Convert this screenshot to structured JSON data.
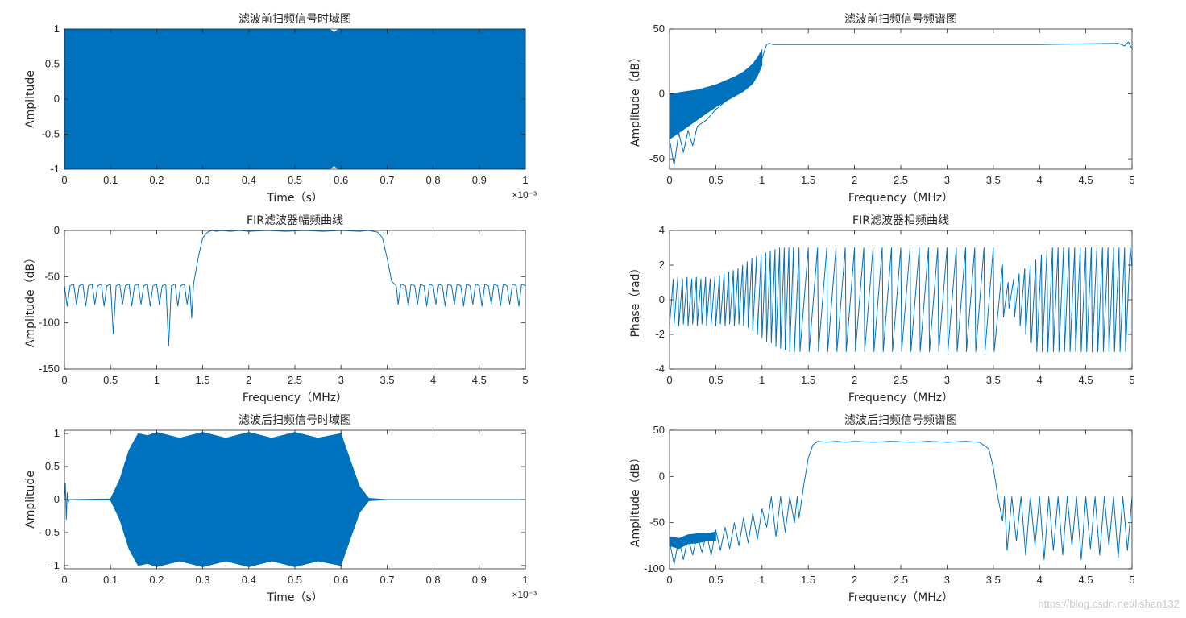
{
  "chart_data": [
    {
      "id": "p1",
      "type": "line",
      "title": "滤波前扫频信号时域图",
      "xlabel": "Time（s）",
      "ylabel": "Amplitude",
      "x_exponent": "×10⁻³",
      "xlim": [
        0,
        1
      ],
      "ylim": [
        -1,
        1
      ],
      "xticks": [
        "0",
        "0.1",
        "0.2",
        "0.3",
        "0.4",
        "0.5",
        "0.6",
        "0.7",
        "0.8",
        "0.9",
        "1"
      ],
      "yticks": [
        "-1",
        "-0.5",
        "0",
        "0.5",
        "1"
      ],
      "grid": false,
      "series": [
        {
          "style": "filled-envelope",
          "x": [
            0,
            0.25,
            0.5,
            0.575,
            0.585,
            0.595,
            0.75,
            1.0
          ],
          "upper": [
            1,
            1,
            1,
            1,
            0.95,
            1,
            1,
            1
          ],
          "lower": [
            -1,
            -1,
            -1,
            -1,
            -0.95,
            -1,
            -1,
            -1
          ]
        }
      ]
    },
    {
      "id": "p2",
      "type": "line",
      "title": "滤波前扫频信号频谱图",
      "xlabel": "Frequency（MHz）",
      "ylabel": "Amplitude（dB）",
      "xlim": [
        0,
        5
      ],
      "ylim": [
        -58,
        50
      ],
      "xticks": [
        "0",
        "0.5",
        "1",
        "1.5",
        "2",
        "2.5",
        "3",
        "3.5",
        "4",
        "4.5",
        "5"
      ],
      "yticks": [
        "-50",
        "0",
        "50"
      ],
      "grid": false,
      "series": [
        {
          "style": "filled-envelope",
          "x": [
            0,
            0.1,
            0.2,
            0.3,
            0.4,
            0.5,
            0.6,
            0.7,
            0.8,
            0.9,
            0.95,
            1.0
          ],
          "upper": [
            0,
            1,
            2,
            3,
            5,
            7,
            10,
            13,
            17,
            23,
            28,
            34
          ],
          "lower": [
            -35,
            -30,
            -25,
            -20,
            -15,
            -10,
            -6,
            -2,
            2,
            8,
            14,
            22
          ]
        },
        {
          "style": "line",
          "x": [
            0,
            0.05,
            0.1,
            0.15,
            0.2,
            0.25,
            0.3,
            0.4,
            0.5,
            0.6,
            0.7,
            0.8,
            0.9,
            0.95,
            1.0,
            1.03,
            1.05,
            1.08,
            1.12,
            1.2,
            2.0,
            3.0,
            4.0,
            4.85,
            4.92,
            4.96,
            5.0
          ],
          "y": [
            -35,
            -55,
            -30,
            -45,
            -28,
            -40,
            -25,
            -20,
            -12,
            -6,
            0,
            5,
            13,
            19,
            27,
            34,
            38,
            39,
            38,
            38,
            38,
            38,
            38,
            39,
            37,
            40,
            35
          ]
        }
      ]
    },
    {
      "id": "p3",
      "type": "line",
      "title": "FIR滤波器幅频曲线",
      "xlabel": "Frequency（MHz）",
      "ylabel": "Amplitude（dB）",
      "xlim": [
        0,
        5
      ],
      "ylim": [
        -150,
        0
      ],
      "xticks": [
        "0",
        "0.5",
        "1",
        "1.5",
        "2",
        "2.5",
        "3",
        "3.5",
        "4",
        "4.5",
        "5"
      ],
      "yticks": [
        "-150",
        "-100",
        "-50",
        "0"
      ],
      "grid": false,
      "series": [
        {
          "style": "line",
          "x": [
            0,
            0.03,
            0.06,
            0.1,
            0.13,
            0.16,
            0.2,
            0.23,
            0.26,
            0.3,
            0.33,
            0.36,
            0.4,
            0.43,
            0.46,
            0.5,
            0.53,
            0.56,
            0.6,
            0.63,
            0.66,
            0.7,
            0.73,
            0.76,
            0.8,
            0.83,
            0.86,
            0.9,
            0.93,
            0.96,
            1.0,
            1.03,
            1.06,
            1.1,
            1.13,
            1.16,
            1.2,
            1.23,
            1.26,
            1.3,
            1.33,
            1.36,
            1.38,
            1.4,
            1.45,
            1.5,
            1.55,
            1.6,
            1.65,
            1.7,
            1.8,
            1.9,
            2.0,
            2.2,
            2.4,
            2.6,
            2.8,
            3.0,
            3.2,
            3.3,
            3.4,
            3.45,
            3.5,
            3.55,
            3.6,
            3.62,
            3.65,
            3.7,
            3.73,
            3.76,
            3.8,
            3.83,
            3.86,
            3.9,
            3.93,
            3.96,
            4.0,
            4.03,
            4.06,
            4.1,
            4.13,
            4.16,
            4.2,
            4.23,
            4.26,
            4.3,
            4.33,
            4.36,
            4.4,
            4.43,
            4.46,
            4.5,
            4.53,
            4.56,
            4.6,
            4.63,
            4.66,
            4.7,
            4.73,
            4.76,
            4.8,
            4.83,
            4.86,
            4.9,
            4.93,
            4.96,
            5.0
          ],
          "y": [
            -60,
            -82,
            -60,
            -58,
            -80,
            -60,
            -58,
            -82,
            -60,
            -58,
            -80,
            -60,
            -58,
            -82,
            -60,
            -58,
            -112,
            -60,
            -58,
            -80,
            -60,
            -58,
            -82,
            -60,
            -58,
            -80,
            -60,
            -58,
            -82,
            -60,
            -58,
            -80,
            -60,
            -58,
            -125,
            -60,
            -58,
            -82,
            -60,
            -58,
            -80,
            -60,
            -95,
            -58,
            -30,
            -8,
            -2,
            0,
            -1,
            0,
            -1,
            0,
            -1,
            0,
            -1,
            0,
            -1,
            0,
            -1,
            0,
            -2,
            -8,
            -30,
            -55,
            -60,
            -80,
            -58,
            -60,
            -82,
            -58,
            -60,
            -80,
            -58,
            -60,
            -82,
            -58,
            -60,
            -80,
            -58,
            -60,
            -82,
            -58,
            -60,
            -80,
            -58,
            -60,
            -82,
            -58,
            -60,
            -80,
            -58,
            -60,
            -82,
            -58,
            -60,
            -80,
            -58,
            -60,
            -82,
            -58,
            -60,
            -80,
            -58,
            -60,
            -82,
            -58,
            -60
          ]
        }
      ]
    },
    {
      "id": "p4",
      "type": "line",
      "title": "FIR滤波器相频曲线",
      "xlabel": "Frequency（MHz）",
      "ylabel": "Phase（rad）",
      "xlim": [
        0,
        5
      ],
      "ylim": [
        -4,
        4
      ],
      "xticks": [
        "0",
        "0.5",
        "1",
        "1.5",
        "2",
        "2.5",
        "3",
        "3.5",
        "4",
        "4.5",
        "5"
      ],
      "yticks": [
        "-4",
        "-2",
        "0",
        "2",
        "4"
      ],
      "grid": false,
      "series": [
        {
          "style": "line",
          "x": [
            0,
            0.04,
            0.05,
            0.09,
            0.1,
            0.14,
            0.15,
            0.19,
            0.2,
            0.24,
            0.25,
            0.29,
            0.3,
            0.34,
            0.35,
            0.39,
            0.4,
            0.44,
            0.45,
            0.49,
            0.5,
            0.54,
            0.55,
            0.59,
            0.6,
            0.64,
            0.65,
            0.69,
            0.7,
            0.74,
            0.75,
            0.79,
            0.8,
            0.84,
            0.85,
            0.89,
            0.9,
            0.94,
            0.95,
            0.99,
            1.0,
            1.04,
            1.05,
            1.09,
            1.1,
            1.14,
            1.15,
            1.19,
            1.2,
            1.24,
            1.25,
            1.29,
            1.3,
            1.34,
            1.35,
            1.4,
            1.41,
            1.5,
            1.51,
            1.6,
            1.61,
            1.7,
            1.71,
            1.8,
            1.81,
            1.9,
            1.91,
            2.0,
            2.01,
            2.1,
            2.11,
            2.2,
            2.21,
            2.3,
            2.31,
            2.4,
            2.41,
            2.5,
            2.51,
            2.6,
            2.61,
            2.7,
            2.71,
            2.8,
            2.81,
            2.9,
            2.91,
            3.0,
            3.01,
            3.1,
            3.11,
            3.2,
            3.21,
            3.3,
            3.31,
            3.4,
            3.41,
            3.5,
            3.51,
            3.6,
            3.61,
            3.66,
            3.67,
            3.72,
            3.73,
            3.78,
            3.79,
            3.84,
            3.85,
            3.9,
            3.91,
            3.96,
            3.97,
            4.02,
            4.03,
            4.08,
            4.09,
            4.14,
            4.15,
            4.2,
            4.21,
            4.26,
            4.27,
            4.32,
            4.33,
            4.38,
            4.39,
            4.44,
            4.45,
            4.5,
            4.51,
            4.56,
            4.57,
            4.62,
            4.63,
            4.68,
            4.69,
            4.74,
            4.75,
            4.8,
            4.81,
            4.86,
            4.87,
            4.92,
            4.93,
            4.98,
            5.0
          ],
          "y": [
            -1.5,
            1.2,
            -1.4,
            1.3,
            -1.5,
            1.2,
            -1.4,
            1.3,
            -1.5,
            1.2,
            -1.4,
            1.3,
            -1.5,
            1.2,
            -1.4,
            1.3,
            -1.5,
            1.2,
            -1.4,
            1.3,
            -1.5,
            1.4,
            -1.4,
            1.5,
            -1.5,
            1.6,
            -1.4,
            1.7,
            -1.5,
            1.8,
            -1.4,
            2.0,
            -1.5,
            2.2,
            -1.6,
            2.4,
            -1.8,
            2.5,
            -2.0,
            2.6,
            -2.2,
            2.7,
            -2.4,
            2.8,
            -2.5,
            2.9,
            -2.7,
            3.0,
            -2.8,
            3.0,
            -2.9,
            3.0,
            -3.0,
            3.0,
            -3.0,
            3.0,
            -3.0,
            3.0,
            -3.0,
            3.0,
            -3.0,
            3.0,
            -3.0,
            3.0,
            -3.0,
            3.0,
            -3.0,
            3.0,
            -3.0,
            3.0,
            -3.0,
            3.0,
            -3.0,
            3.0,
            -3.0,
            3.0,
            -3.0,
            3.0,
            -3.0,
            3.0,
            -3.0,
            3.0,
            -3.0,
            3.0,
            -3.0,
            3.0,
            -3.0,
            3.0,
            -3.0,
            3.0,
            -3.0,
            3.0,
            -3.0,
            3.0,
            -3.0,
            3.0,
            -3.0,
            3.0,
            -3.0,
            2.0,
            -1.0,
            1.0,
            -0.5,
            1.2,
            -1.0,
            1.5,
            -1.5,
            1.8,
            -2.0,
            2.0,
            -2.5,
            2.3,
            -3.0,
            2.6,
            -3.0,
            2.8,
            -3.0,
            3.0,
            -3.0,
            3.0,
            -3.0,
            3.0,
            -3.0,
            3.0,
            -3.0,
            3.0,
            -3.0,
            3.0,
            -3.0,
            3.0,
            -3.0,
            3.0,
            -3.0,
            3.0,
            -3.0,
            3.0,
            -3.0,
            3.0,
            -3.0,
            3.0,
            -3.0,
            3.0,
            -3.0,
            3.0,
            -3.0,
            3.0,
            1.9
          ]
        }
      ]
    },
    {
      "id": "p5",
      "type": "line",
      "title": "滤波后扫频信号时域图",
      "xlabel": "Time（s）",
      "ylabel": "Amplitude",
      "x_exponent": "×10⁻³",
      "xlim": [
        0,
        1
      ],
      "ylim": [
        -1.05,
        1.05
      ],
      "xticks": [
        "0",
        "0.1",
        "0.2",
        "0.3",
        "0.4",
        "0.5",
        "0.6",
        "0.7",
        "0.8",
        "0.9",
        "1"
      ],
      "yticks": [
        "-1",
        "-0.5",
        "0",
        "0.5",
        "1"
      ],
      "grid": false,
      "series": [
        {
          "style": "filled-envelope",
          "x": [
            0,
            0.1,
            0.12,
            0.14,
            0.16,
            0.18,
            0.2,
            0.25,
            0.3,
            0.35,
            0.4,
            0.45,
            0.5,
            0.55,
            0.6,
            0.62,
            0.64,
            0.66,
            0.7,
            1.0
          ],
          "upper": [
            0,
            0.01,
            0.3,
            0.75,
            1.0,
            0.97,
            1.02,
            0.93,
            1.02,
            0.93,
            1.02,
            0.93,
            1.02,
            0.93,
            1.0,
            0.6,
            0.2,
            0.02,
            0,
            0
          ],
          "lower": [
            0,
            -0.01,
            -0.3,
            -0.75,
            -1.0,
            -0.97,
            -1.02,
            -0.93,
            -1.02,
            -0.93,
            -1.02,
            -0.93,
            -1.02,
            -0.93,
            -1.0,
            -0.6,
            -0.2,
            -0.02,
            0,
            0
          ]
        },
        {
          "style": "line",
          "x": [
            0,
            0.002,
            0.004,
            0.006,
            0.008,
            0.01,
            0.1,
            1.0
          ],
          "y": [
            0,
            0.25,
            -0.3,
            0.1,
            -0.05,
            0,
            0,
            0
          ]
        }
      ]
    },
    {
      "id": "p6",
      "type": "line",
      "title": "滤波后扫频信号频谱图",
      "xlabel": "Frequency（MHz）",
      "ylabel": "Amplitude（dB）",
      "xlim": [
        0,
        5
      ],
      "ylim": [
        -100,
        50
      ],
      "xticks": [
        "0",
        "0.5",
        "1",
        "1.5",
        "2",
        "2.5",
        "3",
        "3.5",
        "4",
        "4.5",
        "5"
      ],
      "yticks": [
        "-100",
        "-50",
        "0",
        "50"
      ],
      "grid": false,
      "series": [
        {
          "style": "filled-envelope",
          "x": [
            0,
            0.1,
            0.2,
            0.3,
            0.4,
            0.5
          ],
          "upper": [
            -65,
            -67,
            -63,
            -62,
            -62,
            -60
          ],
          "lower": [
            -75,
            -78,
            -73,
            -72,
            -70,
            -70
          ]
        },
        {
          "style": "line",
          "x": [
            0,
            0.05,
            0.1,
            0.15,
            0.2,
            0.25,
            0.3,
            0.35,
            0.4,
            0.45,
            0.5,
            0.55,
            0.6,
            0.65,
            0.7,
            0.75,
            0.8,
            0.85,
            0.9,
            0.95,
            1.0,
            1.05,
            1.1,
            1.15,
            1.2,
            1.25,
            1.3,
            1.35,
            1.38,
            1.4,
            1.45,
            1.5,
            1.55,
            1.6,
            1.7,
            1.8,
            1.9,
            2.0,
            2.2,
            2.4,
            2.6,
            2.8,
            3.0,
            3.2,
            3.35,
            3.45,
            3.5,
            3.55,
            3.6,
            3.62,
            3.65,
            3.7,
            3.75,
            3.8,
            3.85,
            3.9,
            3.95,
            4.0,
            4.05,
            4.1,
            4.15,
            4.2,
            4.25,
            4.3,
            4.35,
            4.4,
            4.45,
            4.5,
            4.55,
            4.6,
            4.65,
            4.7,
            4.75,
            4.8,
            4.85,
            4.9,
            4.95,
            5.0
          ],
          "y": [
            -70,
            -95,
            -68,
            -90,
            -66,
            -85,
            -64,
            -82,
            -62,
            -85,
            -58,
            -80,
            -55,
            -78,
            -50,
            -75,
            -45,
            -72,
            -40,
            -68,
            -35,
            -55,
            -22,
            -65,
            -22,
            -60,
            -22,
            -50,
            -22,
            -45,
            -10,
            20,
            34,
            38,
            37,
            38,
            37,
            38,
            37,
            38,
            37,
            38,
            37,
            38,
            37,
            30,
            10,
            -22,
            -48,
            -22,
            -80,
            -22,
            -70,
            -22,
            -85,
            -22,
            -75,
            -22,
            -90,
            -22,
            -80,
            -22,
            -85,
            -22,
            -75,
            -22,
            -90,
            -22,
            -78,
            -22,
            -85,
            -22,
            -75,
            -22,
            -88,
            -22,
            -80,
            -22
          ]
        }
      ]
    }
  ],
  "watermark": "https://blog.csdn.net/lishan132"
}
